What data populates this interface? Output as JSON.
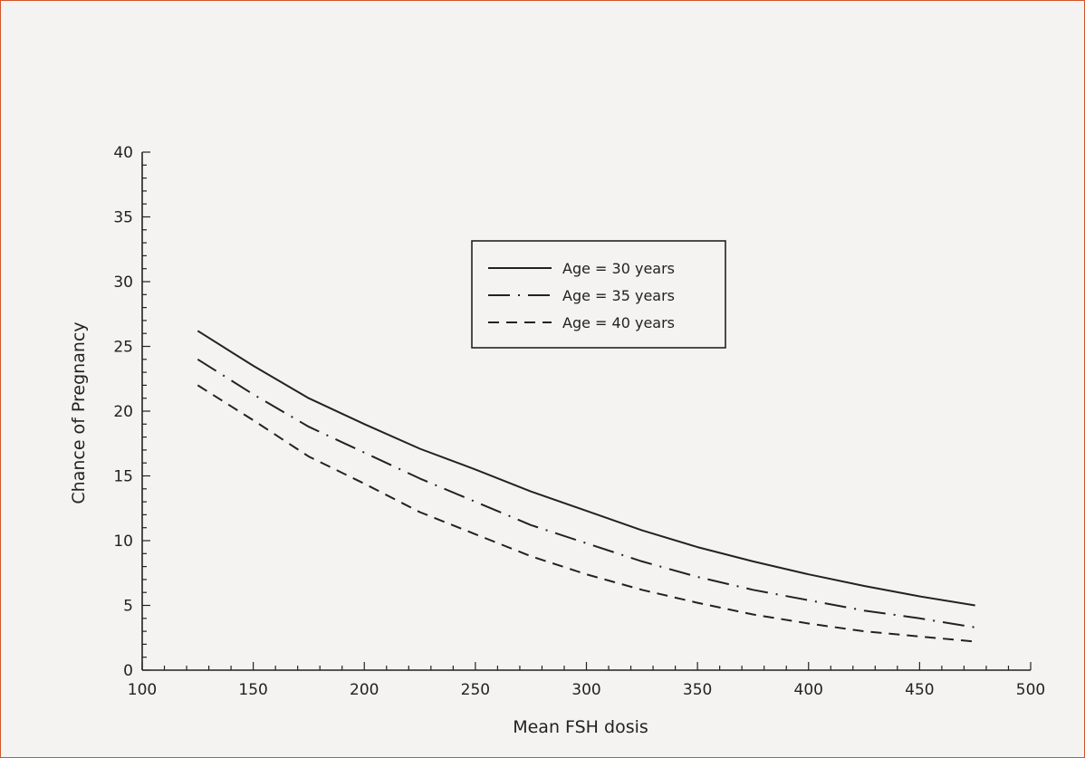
{
  "colors": {
    "border": "#d2542a",
    "background": "#f5f3f1",
    "ink": "#222222"
  },
  "chart_data": {
    "type": "line",
    "title": "",
    "xlabel": "Mean FSH dosis",
    "ylabel": "Chance of Pregnancy",
    "xlim": [
      100,
      500
    ],
    "ylim": [
      0,
      40
    ],
    "xticks": [
      100,
      150,
      200,
      250,
      300,
      350,
      400,
      450,
      500
    ],
    "yticks": [
      0,
      5,
      10,
      15,
      20,
      25,
      30,
      35,
      40
    ],
    "grid": false,
    "legend_position": "top-center",
    "x": [
      125,
      150,
      175,
      200,
      225,
      250,
      275,
      300,
      325,
      350,
      375,
      400,
      425,
      450,
      475
    ],
    "series": [
      {
        "name": "Age = 30 years",
        "style": "solid",
        "values": [
          26.2,
          23.5,
          21.0,
          19.0,
          17.1,
          15.5,
          13.8,
          12.3,
          10.8,
          9.5,
          8.4,
          7.4,
          6.5,
          5.7,
          5.0
        ]
      },
      {
        "name": "Age = 35 years",
        "style": "dash-dot",
        "values": [
          24.0,
          21.3,
          18.8,
          16.8,
          14.8,
          13.0,
          11.2,
          9.8,
          8.4,
          7.2,
          6.2,
          5.4,
          4.6,
          4.0,
          3.3
        ]
      },
      {
        "name": "Age = 40 years",
        "style": "dashed",
        "values": [
          22.0,
          19.3,
          16.5,
          14.4,
          12.2,
          10.5,
          8.8,
          7.4,
          6.2,
          5.2,
          4.3,
          3.6,
          3.0,
          2.6,
          2.2
        ]
      }
    ]
  }
}
